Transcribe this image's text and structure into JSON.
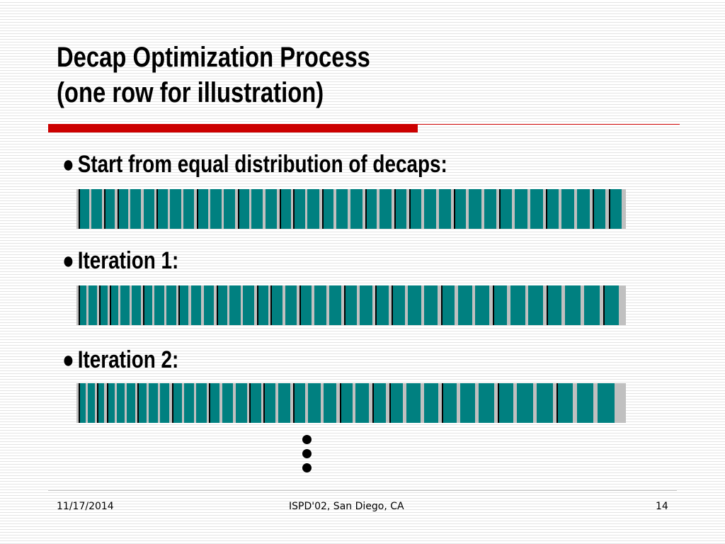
{
  "slide": {
    "title_line1": "Decap Optimization Process",
    "title_line2": "(one row for illustration)",
    "bullet_symbol": "●",
    "rows": [
      {
        "label": "Start from equal distribution of decaps:",
        "cells": 38
      },
      {
        "label": "Iteration 1:",
        "cells": 37
      },
      {
        "label": "Iteration 2:",
        "cells": 36
      }
    ],
    "continuation_dots": 3
  },
  "footer": {
    "date": "11/17/2014",
    "event": "ISPD'02, San Diego, CA",
    "page_number": "14"
  },
  "colors": {
    "title_rule": "#cc0000",
    "decap_cell": "#008080",
    "row_background": "#c0c0c0",
    "cell_edge": "#000000"
  }
}
